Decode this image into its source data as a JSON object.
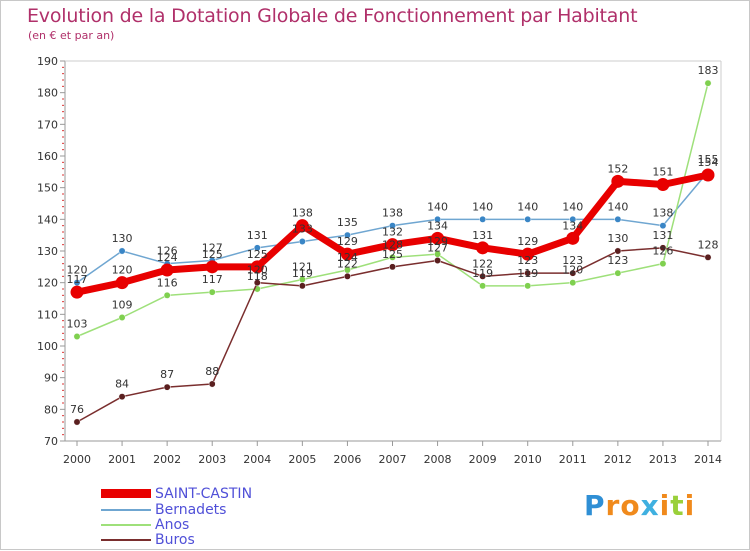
{
  "title": "Evolution de la Dotation Globale de Fonctionnement par Habitant",
  "subtitle": "(en € et par an)",
  "chart_data": {
    "type": "line",
    "title": "Evolution de la Dotation Globale de Fonctionnement par Habitant",
    "subtitle": "(en € et par an)",
    "xlabel": "",
    "ylabel": "",
    "ylim": [
      70,
      190
    ],
    "yticks": [
      70,
      80,
      90,
      100,
      110,
      120,
      130,
      140,
      150,
      160,
      170,
      180,
      190
    ],
    "x": [
      "2000",
      "2001",
      "2002",
      "2003",
      "2004",
      "2005",
      "2006",
      "2007",
      "2008",
      "2009",
      "2010",
      "2011",
      "2012",
      "2013",
      "2014"
    ],
    "series": [
      {
        "name": "Bernadets",
        "color": "#6fa6d1",
        "marker": "#3a86c6",
        "values": [
          120,
          130,
          126,
          127,
          131,
          133,
          135,
          138,
          140,
          140,
          140,
          140,
          140,
          138,
          155
        ],
        "labels": [
          "120",
          "130",
          "126",
          "127",
          "131",
          "133",
          "135",
          "138",
          "140",
          "140",
          "140",
          "140",
          "140",
          "138",
          "155"
        ]
      },
      {
        "name": "Anos",
        "color": "#9ee07a",
        "marker": "#7fd04f",
        "values": [
          103,
          109,
          116,
          117,
          118,
          121,
          124,
          128,
          129,
          119,
          119,
          120,
          123,
          126,
          183
        ],
        "labels": [
          "103",
          "109",
          "116",
          "117",
          "118",
          "121",
          "124",
          "128",
          "129",
          "119",
          "119",
          "120",
          "123",
          "126",
          "183"
        ]
      },
      {
        "name": "Buros",
        "color": "#7a2e2e",
        "marker": "#5a1f1f",
        "values": [
          76,
          84,
          87,
          88,
          120,
          119,
          122,
          125,
          127,
          122,
          123,
          123,
          130,
          131,
          128
        ],
        "labels": [
          "76",
          "84",
          "87",
          "88",
          "120",
          "119",
          "122",
          "125",
          "127",
          "122",
          "123",
          "123",
          "130",
          "131",
          "128"
        ]
      },
      {
        "name": "SAINT-CASTIN",
        "color": "#e80000",
        "marker": "#e80000",
        "values": [
          117,
          120,
          124,
          125,
          125,
          138,
          129,
          132,
          134,
          131,
          129,
          134,
          152,
          151,
          154
        ],
        "labels": [
          "117",
          "120",
          "124",
          "125",
          "125",
          "138",
          "129",
          "132",
          "134",
          "131",
          "129",
          "134",
          "152",
          "151",
          "154"
        ]
      }
    ],
    "legend": [
      "SAINT-CASTIN",
      "Bernadets",
      "Anos",
      "Buros"
    ],
    "legend_position": "bottom-left"
  },
  "legend": {
    "saint_castin": "SAINT-CASTIN",
    "bernadets": "Bernadets",
    "anos": "Anos",
    "buros": "Buros"
  },
  "logo": {
    "letters": [
      "P",
      "r",
      "o",
      "x",
      "i",
      "t",
      "i"
    ],
    "colors": [
      "#2f8fd5",
      "#f08a1c",
      "#f08a1c",
      "#3fb0e0",
      "#f08a1c",
      "#9ad03a",
      "#f08a1c"
    ]
  }
}
